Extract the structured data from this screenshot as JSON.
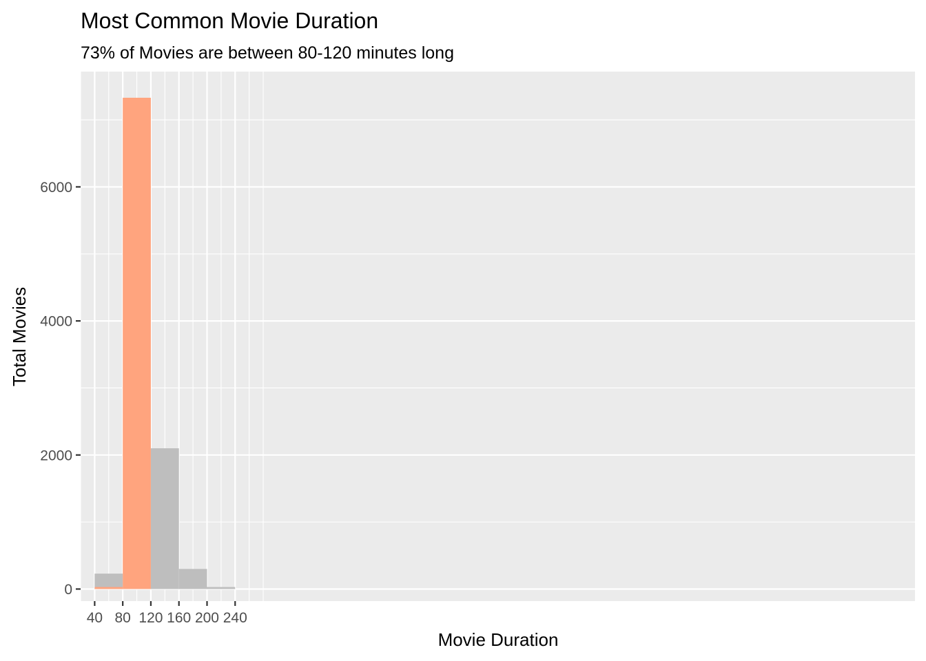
{
  "chart_data": {
    "type": "bar",
    "title": "Most Common Movie Duration",
    "subtitle": "73% of Movies are between 80-120 minutes long",
    "xlabel": "Movie Duration",
    "ylabel": "Total Movies",
    "xlim": [
      20,
      1208
    ],
    "ylim": [
      -180,
      7720
    ],
    "x_ticks": [
      40,
      80,
      120,
      160,
      200,
      240
    ],
    "x_minor_ticks": [
      20,
      60,
      100,
      140,
      180,
      220,
      260,
      280
    ],
    "y_ticks": [
      0,
      2000,
      4000,
      6000
    ],
    "y_minor_ticks": [
      1000,
      3000,
      5000,
      7000
    ],
    "grid": true,
    "legend": "none",
    "colors": {
      "panel": "#EBEBEB",
      "grid": "#FFFFFF",
      "highlight": "#FFA47E",
      "other": "#BEBEBE",
      "axis_text": "#4D4D4D",
      "title_text": "#000000"
    },
    "series": [
      {
        "color": "#BEBEBE",
        "bins": [
          {
            "xmin": 40,
            "xmax": 80,
            "value": 230
          },
          {
            "xmin": 120,
            "xmax": 160,
            "value": 2100
          },
          {
            "xmin": 160,
            "xmax": 200,
            "value": 300
          },
          {
            "xmin": 200,
            "xmax": 240,
            "value": 30
          }
        ]
      },
      {
        "color": "#FFA47E",
        "bins": [
          {
            "xmin": 40,
            "xmax": 80,
            "value": 30
          },
          {
            "xmin": 80,
            "xmax": 120,
            "value": 7330
          }
        ]
      }
    ]
  }
}
